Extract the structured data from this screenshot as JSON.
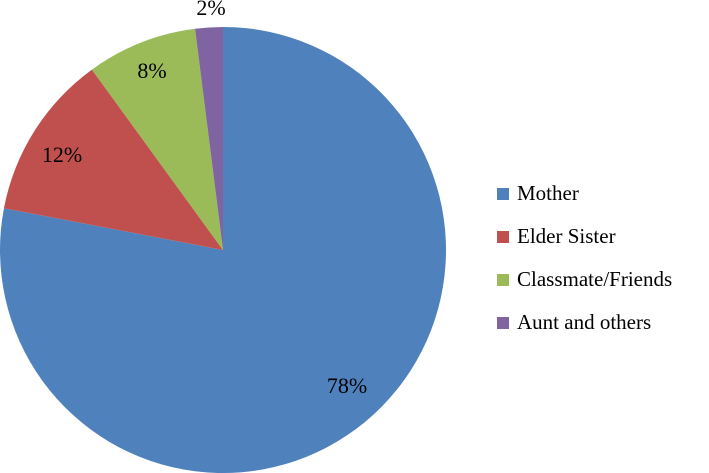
{
  "chart_data": {
    "type": "pie",
    "title": "",
    "start_angle_deg": 0,
    "direction": "clockwise",
    "legend_position": "right",
    "slices": [
      {
        "label": "Mother",
        "value": 78,
        "value_label": "78%",
        "color": "#4F81BD"
      },
      {
        "label": "Elder Sister",
        "value": 12,
        "value_label": "12%",
        "color": "#C0504D"
      },
      {
        "label": "Classmate/Friends",
        "value": 8,
        "value_label": "8%",
        "color": "#9BBB59"
      },
      {
        "label": "Aunt and others",
        "value": 2,
        "value_label": "2%",
        "color": "#8064A2"
      }
    ]
  }
}
